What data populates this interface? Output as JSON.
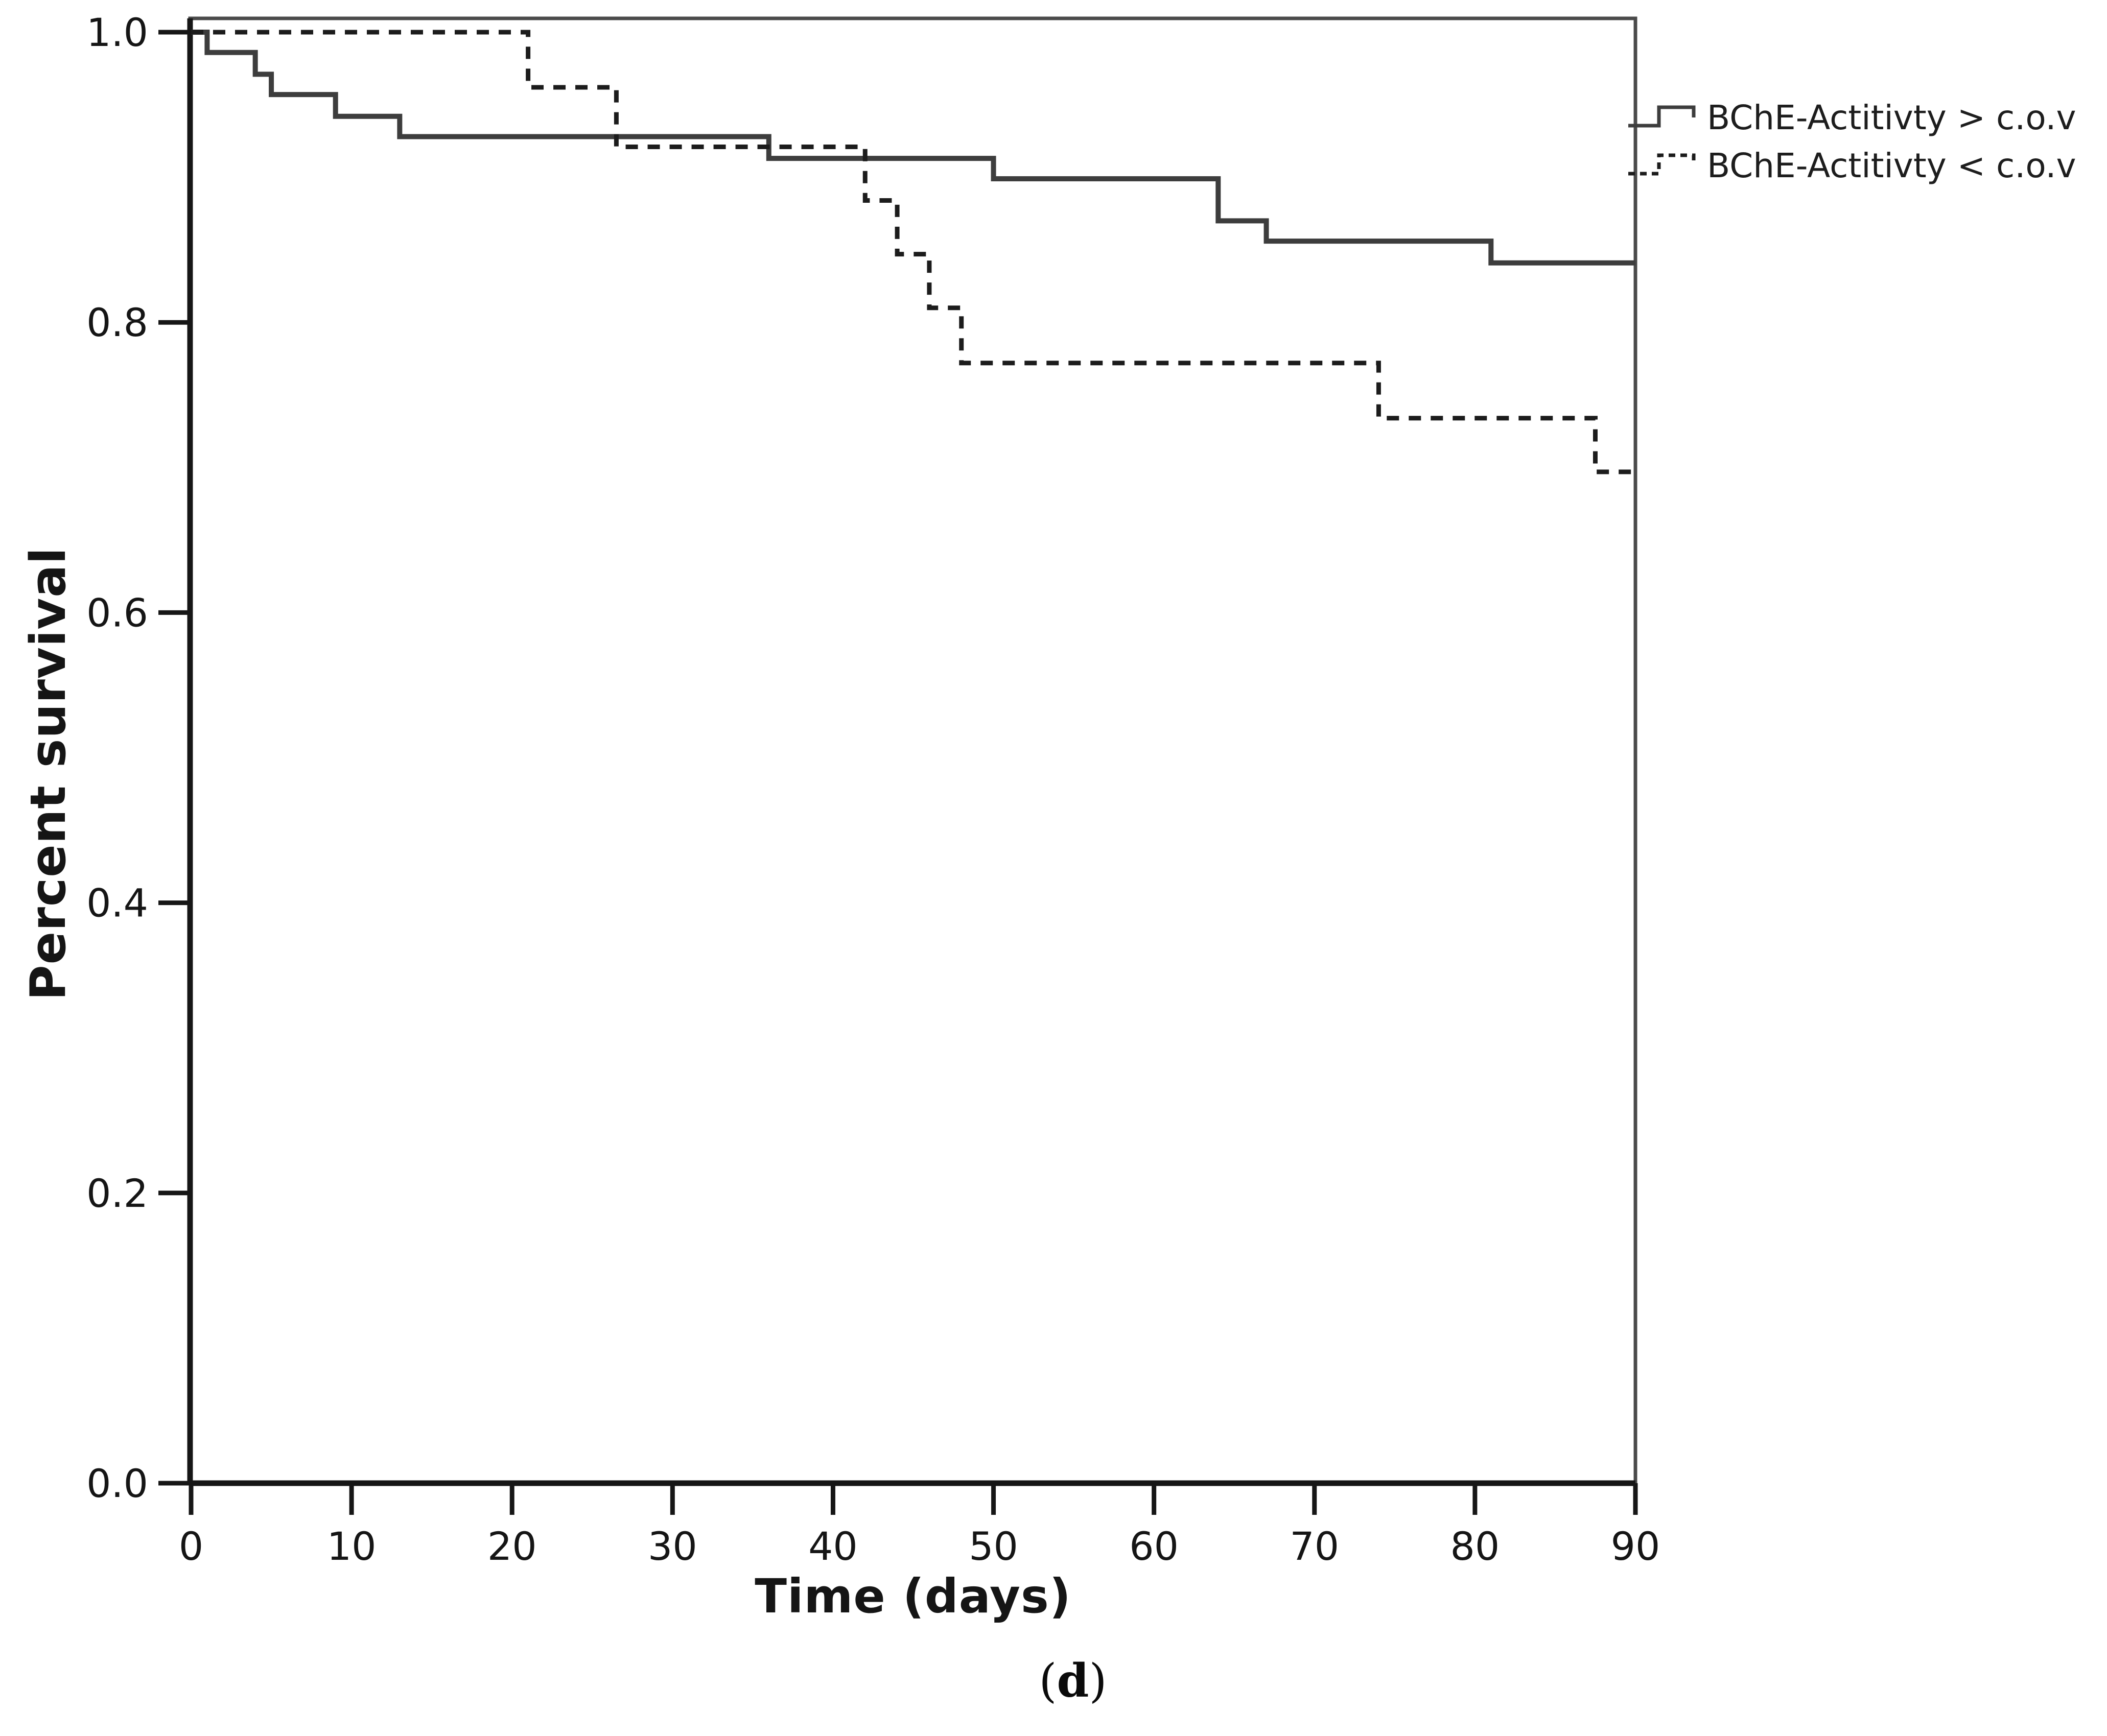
{
  "figure": {
    "caption": {
      "open": "(",
      "letter": "d",
      "close": ")"
    }
  },
  "legend": {
    "items": [
      {
        "label": "BChE-Actitivty > c.o.v",
        "style": "solid"
      },
      {
        "label": "BChE-Actitivty < c.o.v",
        "style": "dashed"
      }
    ]
  },
  "colors": {
    "solid_curve": "#3d3d3d",
    "dashed_curve": "#1c1c1c",
    "axis": "#161616",
    "frame": "#4a4a4a",
    "text": "#151515"
  },
  "chart_data": {
    "type": "line",
    "subtype": "kaplan-meier-step",
    "title": "",
    "xlabel": "Time (days)",
    "ylabel": "Percent survival",
    "xlim": [
      0,
      90
    ],
    "ylim": [
      0.0,
      1.0
    ],
    "grid": false,
    "legend_position": "outside-top-right",
    "x_ticks": [
      0,
      10,
      20,
      30,
      40,
      50,
      60,
      70,
      80,
      90
    ],
    "x_tick_labels": [
      "0",
      "10",
      "20",
      "30",
      "40",
      "50",
      "60",
      "70",
      "80",
      "90"
    ],
    "y_ticks": [
      0.0,
      0.2,
      0.4,
      0.6,
      0.8,
      1.0
    ],
    "y_tick_labels": [
      "0.0",
      "0.2",
      "0.4",
      "0.6",
      "0.8",
      "1.0"
    ],
    "series": [
      {
        "name": "BChE-Actitivty > c.o.v",
        "line": "solid",
        "color": "#3d3d3d",
        "points": [
          [
            0,
            1.0
          ],
          [
            1,
            0.986
          ],
          [
            4,
            0.971
          ],
          [
            5,
            0.957
          ],
          [
            9,
            0.942
          ],
          [
            13,
            0.928
          ],
          [
            36,
            0.913
          ],
          [
            50,
            0.899
          ],
          [
            64,
            0.87
          ],
          [
            67,
            0.856
          ],
          [
            81,
            0.841
          ],
          [
            90,
            0.841
          ]
        ]
      },
      {
        "name": "BChE-Actitivty < c.o.v",
        "line": "dashed",
        "color": "#1c1c1c",
        "points": [
          [
            0,
            1.0
          ],
          [
            21,
            0.962
          ],
          [
            26.5,
            0.921
          ],
          [
            42,
            0.884
          ],
          [
            44,
            0.847
          ],
          [
            46,
            0.81
          ],
          [
            48,
            0.772
          ],
          [
            74,
            0.734
          ],
          [
            87.5,
            0.697
          ],
          [
            90,
            0.697
          ]
        ]
      }
    ]
  }
}
